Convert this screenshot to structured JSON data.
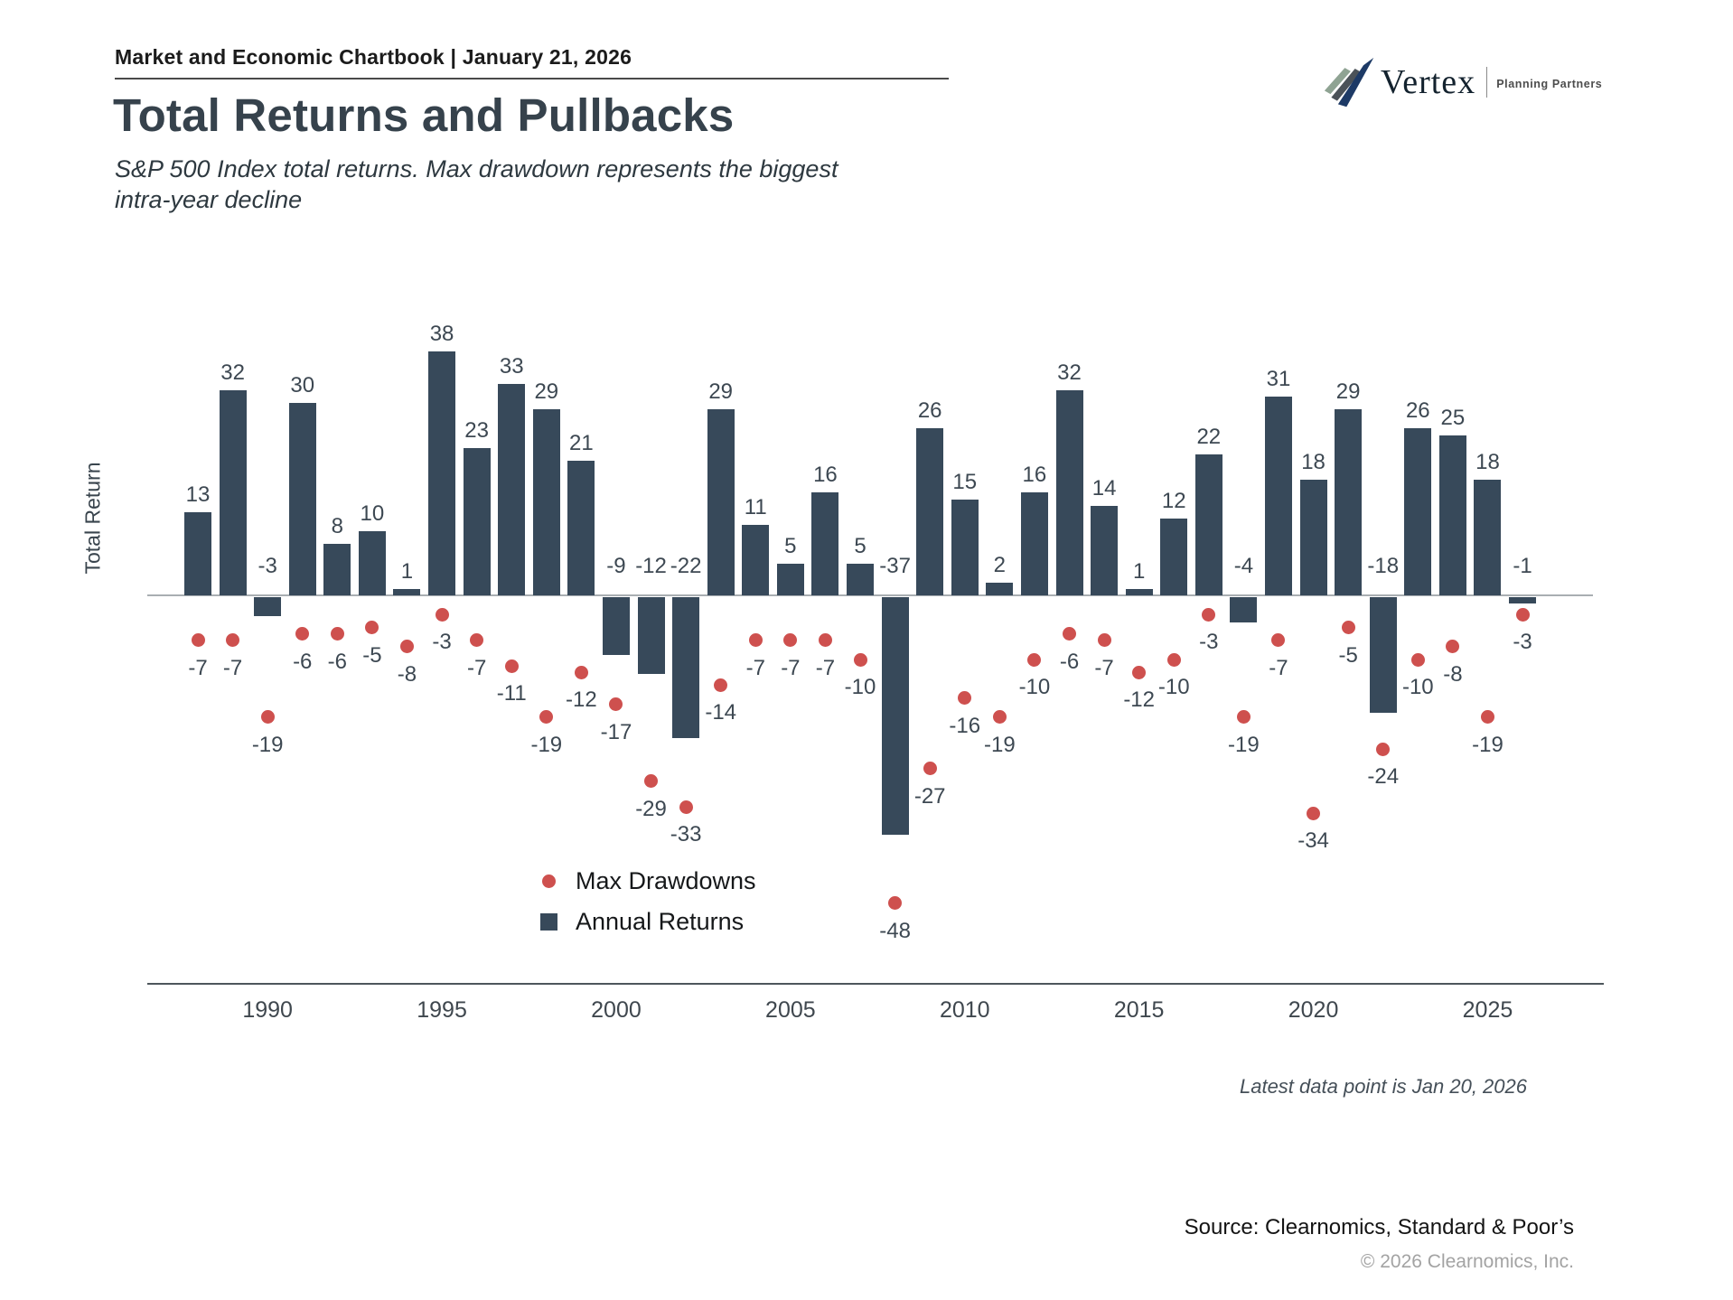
{
  "header": {
    "title": "Market and Economic Chartbook | January 21, 2026"
  },
  "logo": {
    "name": "Vertex",
    "tagline": "Planning Partners",
    "colors": {
      "green": "#8FA393",
      "gray": "#4B5258",
      "navy": "#1D3A66"
    }
  },
  "page_title": "Total Returns and Pullbacks",
  "subtitle_line1": "S&P 500 Index total returns. Max drawdown represents the biggest",
  "subtitle_line2": "intra-year decline",
  "y_axis_label": "Total Return",
  "legend": {
    "drawdowns": "Max Drawdowns",
    "returns": "Annual Returns"
  },
  "footnote": "Latest data point is Jan 20, 2026",
  "source": "Source: Clearnomics, Standard & Poor’s",
  "copyright": "© 2026 Clearnomics, Inc.",
  "chart_data": {
    "type": "bar",
    "title": "Total Returns and Pullbacks",
    "xlabel": "",
    "ylabel": "Total Return",
    "grid": false,
    "ylim": [
      -52,
      42
    ],
    "legend_position": "inside-bottom-center",
    "x_ticks": [
      1990,
      1995,
      2000,
      2005,
      2010,
      2015,
      2020,
      2025
    ],
    "years": [
      1988,
      1989,
      1990,
      1991,
      1992,
      1993,
      1994,
      1995,
      1996,
      1997,
      1998,
      1999,
      2000,
      2001,
      2002,
      2003,
      2004,
      2005,
      2006,
      2007,
      2008,
      2009,
      2010,
      2011,
      2012,
      2013,
      2014,
      2015,
      2016,
      2017,
      2018,
      2019,
      2020,
      2021,
      2022,
      2023,
      2024,
      2025,
      2026
    ],
    "series": [
      {
        "name": "Annual Returns",
        "type": "bar",
        "color": "#37495A",
        "values": [
          13,
          32,
          -3,
          30,
          8,
          10,
          1,
          38,
          23,
          33,
          29,
          21,
          -9,
          -12,
          -22,
          29,
          11,
          5,
          16,
          5,
          -37,
          26,
          15,
          2,
          16,
          32,
          14,
          1,
          12,
          22,
          -4,
          31,
          18,
          29,
          -18,
          26,
          25,
          18,
          -1
        ]
      },
      {
        "name": "Max Drawdowns",
        "type": "scatter",
        "color": "#CE504E",
        "values": [
          -7,
          -7,
          -19,
          -6,
          -6,
          -5,
          -8,
          -3,
          -7,
          -11,
          -19,
          -12,
          -17,
          -29,
          -33,
          -14,
          -7,
          -7,
          -7,
          -10,
          -48,
          -27,
          -16,
          -19,
          -10,
          -6,
          -7,
          -12,
          -10,
          -3,
          -19,
          -7,
          -34,
          -5,
          -24,
          -10,
          -8,
          -19,
          -3
        ]
      }
    ]
  }
}
